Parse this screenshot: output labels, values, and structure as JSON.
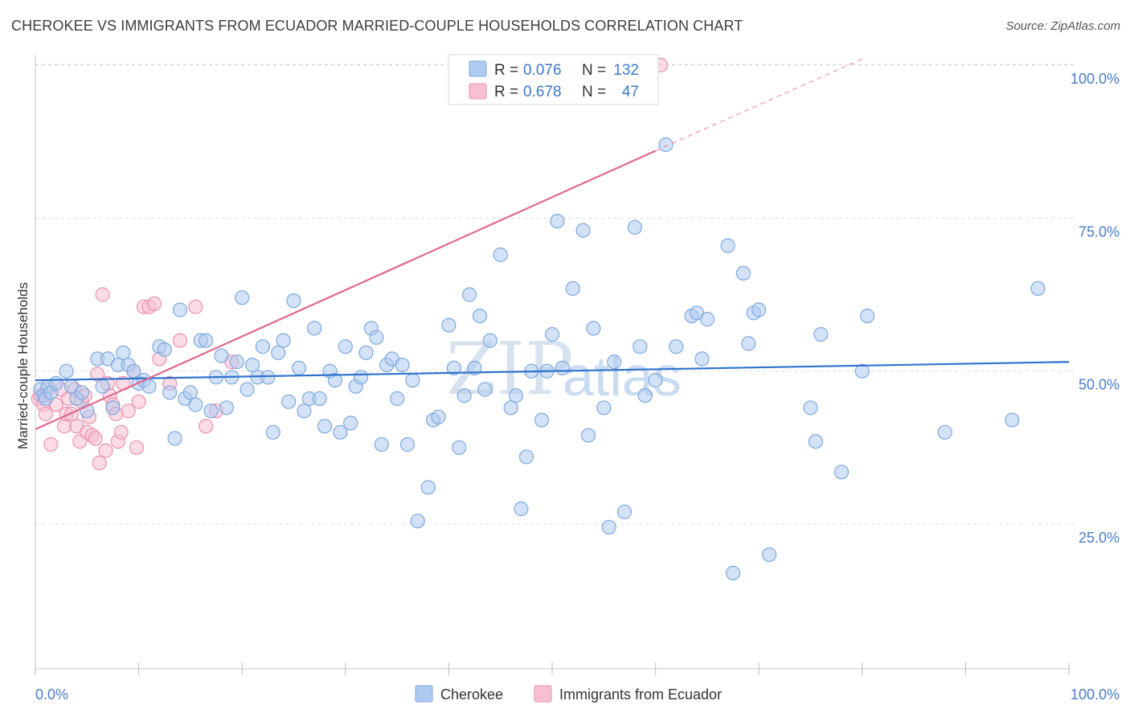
{
  "header": {
    "title": "CHEROKEE VS IMMIGRANTS FROM ECUADOR MARRIED-COUPLE HOUSEHOLDS CORRELATION CHART",
    "source": "Source: ZipAtlas.com"
  },
  "watermark": {
    "zip": "ZIP",
    "atlas": "atlas"
  },
  "legend_top": {
    "rows": [
      {
        "r_label": "R =",
        "r_value": "0.076",
        "n_label": "N =",
        "n_value": "132"
      },
      {
        "r_label": "R =",
        "r_value": "0.678",
        "n_label": "N =",
        "n_value": "47"
      }
    ]
  },
  "colors": {
    "cherokee_fill": "#aecbef",
    "cherokee_stroke": "#7ea9df",
    "cherokee_line": "#2f72cc",
    "ecuador_fill": "#f7bfd1",
    "ecuador_stroke": "#eb91b0",
    "ecuador_line": "#e0688f",
    "tick_text": "#4a7cc7",
    "grid": "#dcdcdc"
  },
  "chart_data": {
    "type": "scatter",
    "title": "CHEROKEE VS IMMIGRANTS FROM ECUADOR MARRIED-COUPLE HOUSEHOLDS CORRELATION CHART",
    "xlabel": "",
    "ylabel": "Married-couple Households",
    "xlim": [
      0,
      100
    ],
    "ylim": [
      0,
      105
    ],
    "x_tick_labels": [
      "0.0%",
      "100.0%"
    ],
    "y_ticks": [
      25,
      50,
      75,
      100
    ],
    "y_tick_labels": [
      "25.0%",
      "50.0%",
      "75.0%",
      "100.0%"
    ],
    "grid": true,
    "legend_position": "top-center",
    "series": [
      {
        "name": "Cherokee",
        "R": 0.076,
        "N": 132,
        "trend": {
          "x0": 0,
          "y0": 48.5,
          "x1": 100,
          "y1": 51.5
        },
        "points": [
          [
            0.5,
            47
          ],
          [
            0.8,
            46
          ],
          [
            1.0,
            45.5
          ],
          [
            1.2,
            47.5
          ],
          [
            1.5,
            46.5
          ],
          [
            2.0,
            48
          ],
          [
            3.0,
            50
          ],
          [
            3.5,
            47.5
          ],
          [
            4.0,
            45.5
          ],
          [
            4.5,
            46.5
          ],
          [
            5.0,
            43.5
          ],
          [
            6.0,
            52
          ],
          [
            6.5,
            47.5
          ],
          [
            7.0,
            52
          ],
          [
            7.5,
            44
          ],
          [
            8.0,
            51
          ],
          [
            8.5,
            53
          ],
          [
            9.0,
            51
          ],
          [
            9.5,
            50
          ],
          [
            10.0,
            48
          ],
          [
            10.5,
            48.5
          ],
          [
            11.0,
            47.5
          ],
          [
            12.0,
            54
          ],
          [
            12.5,
            53.5
          ],
          [
            13.0,
            46.5
          ],
          [
            13.5,
            39
          ],
          [
            14.0,
            60
          ],
          [
            14.5,
            45.5
          ],
          [
            15.0,
            46.5
          ],
          [
            15.5,
            44.5
          ],
          [
            16.0,
            55
          ],
          [
            16.5,
            55
          ],
          [
            17.0,
            43.5
          ],
          [
            17.5,
            49
          ],
          [
            18.0,
            52.5
          ],
          [
            18.5,
            44
          ],
          [
            19.0,
            49
          ],
          [
            19.5,
            51.5
          ],
          [
            20.0,
            62
          ],
          [
            20.5,
            47
          ],
          [
            21.0,
            51
          ],
          [
            21.5,
            49
          ],
          [
            22.0,
            54
          ],
          [
            22.5,
            49
          ],
          [
            23.0,
            40
          ],
          [
            23.5,
            53
          ],
          [
            24.0,
            55
          ],
          [
            24.5,
            45
          ],
          [
            25.0,
            61.5
          ],
          [
            25.5,
            50.5
          ],
          [
            26.0,
            43.5
          ],
          [
            26.5,
            45.5
          ],
          [
            27.0,
            57
          ],
          [
            27.5,
            45.5
          ],
          [
            28.0,
            41
          ],
          [
            28.5,
            50
          ],
          [
            29.0,
            48.5
          ],
          [
            29.5,
            40
          ],
          [
            30.0,
            54
          ],
          [
            30.5,
            41.5
          ],
          [
            31.0,
            47.5
          ],
          [
            31.5,
            49
          ],
          [
            32.0,
            53
          ],
          [
            32.5,
            57
          ],
          [
            33.0,
            55.5
          ],
          [
            33.5,
            38
          ],
          [
            34.0,
            51
          ],
          [
            34.5,
            52
          ],
          [
            35.0,
            45.5
          ],
          [
            35.5,
            51
          ],
          [
            36.0,
            38
          ],
          [
            36.5,
            48.5
          ],
          [
            37.0,
            25.5
          ],
          [
            38.0,
            31
          ],
          [
            38.5,
            42
          ],
          [
            39.0,
            42.5
          ],
          [
            40.0,
            57.5
          ],
          [
            40.5,
            50.5
          ],
          [
            41.0,
            37.5
          ],
          [
            41.5,
            46
          ],
          [
            42.0,
            62.5
          ],
          [
            42.5,
            50.5
          ],
          [
            43.0,
            59
          ],
          [
            43.5,
            47
          ],
          [
            44.0,
            55
          ],
          [
            45.0,
            69
          ],
          [
            46.0,
            44
          ],
          [
            46.5,
            46
          ],
          [
            47.0,
            27.5
          ],
          [
            47.5,
            36
          ],
          [
            48.0,
            50
          ],
          [
            49.0,
            42
          ],
          [
            49.5,
            50
          ],
          [
            50.0,
            56
          ],
          [
            50.5,
            74.5
          ],
          [
            51.0,
            50.5
          ],
          [
            52.0,
            63.5
          ],
          [
            53.0,
            73
          ],
          [
            53.5,
            39.5
          ],
          [
            54.0,
            57
          ],
          [
            55.0,
            44
          ],
          [
            55.5,
            24.5
          ],
          [
            56.0,
            51.5
          ],
          [
            57.0,
            27
          ],
          [
            58.0,
            73.5
          ],
          [
            58.5,
            54
          ],
          [
            59.0,
            46
          ],
          [
            60.0,
            48.5
          ],
          [
            61.0,
            87
          ],
          [
            62.0,
            54
          ],
          [
            63.5,
            59
          ],
          [
            64.0,
            59.5
          ],
          [
            64.5,
            52
          ],
          [
            65.0,
            58.5
          ],
          [
            67.0,
            70.5
          ],
          [
            67.5,
            17
          ],
          [
            68.5,
            66
          ],
          [
            69.0,
            54.5
          ],
          [
            69.5,
            59.5
          ],
          [
            70.0,
            60
          ],
          [
            71.0,
            20
          ],
          [
            75.0,
            44
          ],
          [
            75.5,
            38.5
          ],
          [
            76.0,
            56
          ],
          [
            78.0,
            33.5
          ],
          [
            80.0,
            50
          ],
          [
            80.5,
            59
          ],
          [
            88.0,
            40
          ],
          [
            94.5,
            42
          ],
          [
            97.0,
            63.5
          ]
        ]
      },
      {
        "name": "Immigrants from Ecuador",
        "R": 0.678,
        "N": 47,
        "trend": {
          "x0": 0,
          "y0": 40.5,
          "x1": 60,
          "y1": 86,
          "dash_to_x": 80,
          "dash_to_y": 101
        },
        "points": [
          [
            0.3,
            45.5
          ],
          [
            0.5,
            46
          ],
          [
            0.8,
            44.5
          ],
          [
            1.0,
            43
          ],
          [
            1.2,
            47
          ],
          [
            1.5,
            38
          ],
          [
            2.0,
            44.5
          ],
          [
            2.5,
            47
          ],
          [
            2.8,
            41
          ],
          [
            3.0,
            43
          ],
          [
            3.2,
            45.5
          ],
          [
            3.5,
            43
          ],
          [
            3.8,
            47
          ],
          [
            4.0,
            41
          ],
          [
            4.3,
            38.5
          ],
          [
            4.5,
            45
          ],
          [
            4.8,
            46
          ],
          [
            5.0,
            40
          ],
          [
            5.2,
            42.5
          ],
          [
            5.5,
            39.5
          ],
          [
            5.8,
            39
          ],
          [
            6.0,
            49.5
          ],
          [
            6.2,
            35
          ],
          [
            6.5,
            62.5
          ],
          [
            6.8,
            37
          ],
          [
            7.0,
            48
          ],
          [
            7.2,
            46
          ],
          [
            7.5,
            44.5
          ],
          [
            7.8,
            43
          ],
          [
            8.0,
            38.5
          ],
          [
            8.3,
            40
          ],
          [
            8.5,
            48
          ],
          [
            9.0,
            43.5
          ],
          [
            9.5,
            50
          ],
          [
            9.8,
            37.5
          ],
          [
            10.0,
            45
          ],
          [
            10.5,
            60.5
          ],
          [
            11.0,
            60.5
          ],
          [
            11.5,
            61
          ],
          [
            12.0,
            52
          ],
          [
            13.0,
            48
          ],
          [
            14.0,
            55
          ],
          [
            15.5,
            60.5
          ],
          [
            16.5,
            41
          ],
          [
            17.5,
            43.5
          ],
          [
            19.0,
            51.5
          ],
          [
            60.5,
            100
          ]
        ]
      }
    ]
  },
  "legend_bottom": {
    "items": [
      {
        "label": "Cherokee"
      },
      {
        "label": "Immigrants from Ecuador"
      }
    ]
  }
}
